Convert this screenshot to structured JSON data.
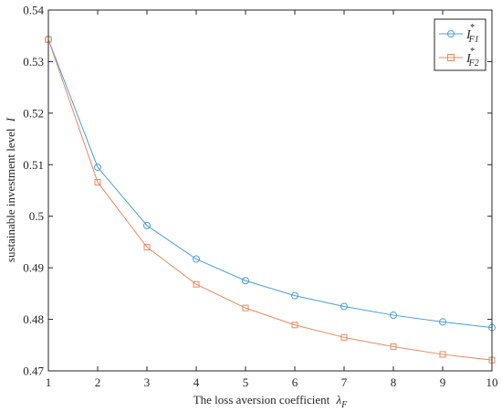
{
  "chart_data": {
    "type": "line",
    "title": "",
    "xlabel": "The loss aversion coefficient",
    "xlabel_symbol": "λ",
    "xlabel_subscript": "F",
    "ylabel": "sustainable investment level",
    "ylabel_symbol": "I",
    "xlim": [
      1,
      10
    ],
    "ylim": [
      0.47,
      0.54
    ],
    "xticks": [
      1,
      2,
      3,
      4,
      5,
      6,
      7,
      8,
      9,
      10
    ],
    "yticks": [
      0.47,
      0.48,
      0.49,
      0.5,
      0.51,
      0.52,
      0.53,
      0.54
    ],
    "ytick_labels": [
      "0.47",
      "0.48",
      "0.49",
      "0.5",
      "0.51",
      "0.52",
      "0.53",
      "0.54"
    ],
    "grid": false,
    "legend_position": "top-right",
    "x": [
      1,
      2,
      3,
      4,
      5,
      6,
      7,
      8,
      9,
      10
    ],
    "series": [
      {
        "name": "I",
        "name_superscript": "*",
        "name_subscript": "F1",
        "color": "#4a9fd8",
        "marker": "circle",
        "values": [
          0.5343,
          0.5095,
          0.4982,
          0.4917,
          0.4875,
          0.4846,
          0.4825,
          0.4808,
          0.4795,
          0.4784
        ]
      },
      {
        "name": "I",
        "name_superscript": "*",
        "name_subscript": "F2",
        "color": "#e88a5e",
        "marker": "square",
        "values": [
          0.5343,
          0.5066,
          0.494,
          0.4868,
          0.4822,
          0.4789,
          0.4765,
          0.4747,
          0.4732,
          0.4721
        ]
      }
    ]
  }
}
